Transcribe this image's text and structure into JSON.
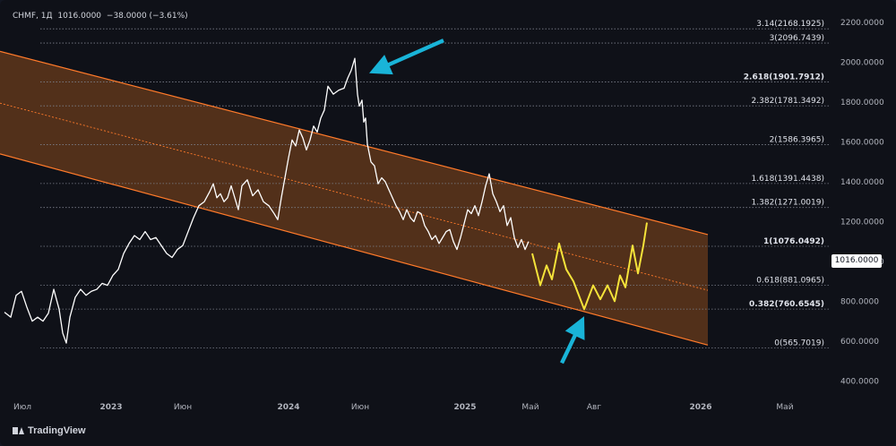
{
  "header": {
    "symbol": "CHMF, 1Д",
    "last": "1016.0000",
    "change": "−38.0000 (−3.61%)"
  },
  "price_tag": "1016.0000",
  "footer": {
    "brand": "TradingView"
  },
  "colors": {
    "background": "#0f1118",
    "channel_fill": "#8b4a1e",
    "channel_line": "#ff7a2a",
    "price_line": "#ffffff",
    "projection": "#f5e33a",
    "arrow": "#19b4d8",
    "grid": "#7b7f8a"
  },
  "chart_data": {
    "type": "line",
    "x_axis_labels": [
      "Июл",
      "2023",
      "Июн",
      "2024",
      "Июн",
      "2025",
      "Май",
      "Авг",
      "2026",
      "Май"
    ],
    "x_axis_bold": [
      false,
      true,
      false,
      true,
      false,
      true,
      false,
      false,
      true,
      false
    ],
    "y_axis_labels": [
      "2200.0000",
      "2000.0000",
      "1800.0000",
      "1600.0000",
      "1400.0000",
      "1200.0000",
      "1000.0000",
      "800.0000",
      "600.0000",
      "400.0000"
    ],
    "y_axis_values": [
      2200,
      2000,
      1800,
      1600,
      1400,
      1200,
      1000,
      800,
      600,
      400
    ],
    "ylim": [
      334,
      2277
    ],
    "last_price": 1016,
    "fib_levels": [
      {
        "label": "3.14(2168.1925)",
        "value": 2168.1925,
        "bold": false
      },
      {
        "label": "3(2096.7439)",
        "value": 2096.7439,
        "bold": false
      },
      {
        "label": "2.618(1901.7912)",
        "value": 1901.7912,
        "bold": true
      },
      {
        "label": "2.382(1781.3492)",
        "value": 1781.3492,
        "bold": false
      },
      {
        "label": "2(1586.3965)",
        "value": 1586.3965,
        "bold": false
      },
      {
        "label": "1.618(1391.4438)",
        "value": 1391.4438,
        "bold": false
      },
      {
        "label": "1.382(1271.0019)",
        "value": 1271.0019,
        "bold": false
      },
      {
        "label": "1(1076.0492)",
        "value": 1076.0492,
        "bold": true
      },
      {
        "label": "0.618(881.0965)",
        "value": 881.0965,
        "bold": false
      },
      {
        "label": "0.382(760.6545)",
        "value": 760.6545,
        "bold": true
      },
      {
        "label": "0(565.7019)",
        "value": 565.7019,
        "bold": false
      }
    ],
    "channel": {
      "upper": [
        [
          0,
          2055
        ],
        [
          790,
          1135
        ]
      ],
      "middle": [
        [
          0,
          1795
        ],
        [
          790,
          855
        ]
      ],
      "lower": [
        [
          0,
          1540
        ],
        [
          790,
          580
        ]
      ]
    },
    "series": [
      {
        "values": [
          [
            5,
            745
          ],
          [
            12,
            720
          ],
          [
            18,
            830
          ],
          [
            24,
            850
          ],
          [
            30,
            770
          ],
          [
            36,
            700
          ],
          [
            42,
            720
          ],
          [
            48,
            700
          ],
          [
            54,
            740
          ],
          [
            60,
            860
          ],
          [
            66,
            760
          ],
          [
            70,
            640
          ],
          [
            74,
            590
          ],
          [
            78,
            720
          ],
          [
            84,
            820
          ],
          [
            90,
            860
          ],
          [
            96,
            830
          ],
          [
            102,
            850
          ],
          [
            108,
            860
          ],
          [
            114,
            890
          ],
          [
            120,
            880
          ],
          [
            126,
            930
          ],
          [
            132,
            960
          ],
          [
            138,
            1040
          ],
          [
            144,
            1090
          ],
          [
            150,
            1130
          ],
          [
            156,
            1110
          ],
          [
            162,
            1150
          ],
          [
            168,
            1110
          ],
          [
            174,
            1120
          ],
          [
            180,
            1080
          ],
          [
            186,
            1040
          ],
          [
            192,
            1020
          ],
          [
            198,
            1060
          ],
          [
            204,
            1080
          ],
          [
            210,
            1150
          ],
          [
            216,
            1220
          ],
          [
            222,
            1280
          ],
          [
            228,
            1300
          ],
          [
            234,
            1350
          ],
          [
            238,
            1390
          ],
          [
            242,
            1320
          ],
          [
            246,
            1340
          ],
          [
            250,
            1300
          ],
          [
            254,
            1320
          ],
          [
            258,
            1380
          ],
          [
            262,
            1320
          ],
          [
            266,
            1260
          ],
          [
            270,
            1380
          ],
          [
            276,
            1410
          ],
          [
            282,
            1330
          ],
          [
            288,
            1360
          ],
          [
            294,
            1300
          ],
          [
            300,
            1280
          ],
          [
            306,
            1240
          ],
          [
            310,
            1210
          ],
          [
            314,
            1320
          ],
          [
            318,
            1420
          ],
          [
            322,
            1520
          ],
          [
            326,
            1610
          ],
          [
            330,
            1580
          ],
          [
            334,
            1660
          ],
          [
            338,
            1620
          ],
          [
            342,
            1560
          ],
          [
            346,
            1610
          ],
          [
            350,
            1680
          ],
          [
            354,
            1650
          ],
          [
            358,
            1720
          ],
          [
            362,
            1760
          ],
          [
            366,
            1880
          ],
          [
            372,
            1840
          ],
          [
            378,
            1860
          ],
          [
            384,
            1870
          ],
          [
            388,
            1920
          ],
          [
            392,
            1960
          ],
          [
            396,
            2020
          ],
          [
            399,
            1840
          ],
          [
            401,
            1780
          ],
          [
            404,
            1810
          ],
          [
            406,
            1700
          ],
          [
            408,
            1720
          ],
          [
            410,
            1590
          ],
          [
            414,
            1500
          ],
          [
            418,
            1480
          ],
          [
            422,
            1390
          ],
          [
            426,
            1420
          ],
          [
            430,
            1400
          ],
          [
            434,
            1360
          ],
          [
            438,
            1320
          ],
          [
            442,
            1280
          ],
          [
            446,
            1250
          ],
          [
            450,
            1210
          ],
          [
            454,
            1260
          ],
          [
            458,
            1220
          ],
          [
            462,
            1200
          ],
          [
            466,
            1250
          ],
          [
            470,
            1240
          ],
          [
            474,
            1180
          ],
          [
            478,
            1150
          ],
          [
            482,
            1110
          ],
          [
            486,
            1130
          ],
          [
            490,
            1090
          ],
          [
            494,
            1120
          ],
          [
            498,
            1150
          ],
          [
            502,
            1160
          ],
          [
            506,
            1100
          ],
          [
            510,
            1060
          ],
          [
            514,
            1120
          ],
          [
            518,
            1190
          ],
          [
            522,
            1260
          ],
          [
            526,
            1240
          ],
          [
            530,
            1280
          ],
          [
            534,
            1230
          ],
          [
            538,
            1300
          ],
          [
            542,
            1380
          ],
          [
            546,
            1440
          ],
          [
            550,
            1340
          ],
          [
            554,
            1300
          ],
          [
            558,
            1250
          ],
          [
            562,
            1280
          ],
          [
            566,
            1180
          ],
          [
            570,
            1220
          ],
          [
            574,
            1120
          ],
          [
            578,
            1070
          ],
          [
            582,
            1110
          ],
          [
            586,
            1060
          ],
          [
            590,
            1100
          ]
        ]
      },
      {
        "values": [
          [
            594,
            1040
          ],
          [
            603,
            880
          ],
          [
            610,
            980
          ],
          [
            616,
            910
          ],
          [
            624,
            1090
          ],
          [
            632,
            960
          ],
          [
            640,
            900
          ],
          [
            652,
            760
          ],
          [
            662,
            880
          ],
          [
            670,
            810
          ],
          [
            678,
            880
          ],
          [
            686,
            800
          ],
          [
            692,
            930
          ],
          [
            698,
            870
          ],
          [
            706,
            1080
          ],
          [
            712,
            940
          ],
          [
            718,
            1080
          ],
          [
            722,
            1195
          ]
        ]
      }
    ],
    "annotations": [
      {
        "type": "arrow",
        "from": [
          495,
          2110
        ],
        "to": [
          412,
          1945
        ]
      },
      {
        "type": "arrow",
        "from": [
          627,
          490
        ],
        "to": [
          652,
          725
        ]
      }
    ]
  }
}
